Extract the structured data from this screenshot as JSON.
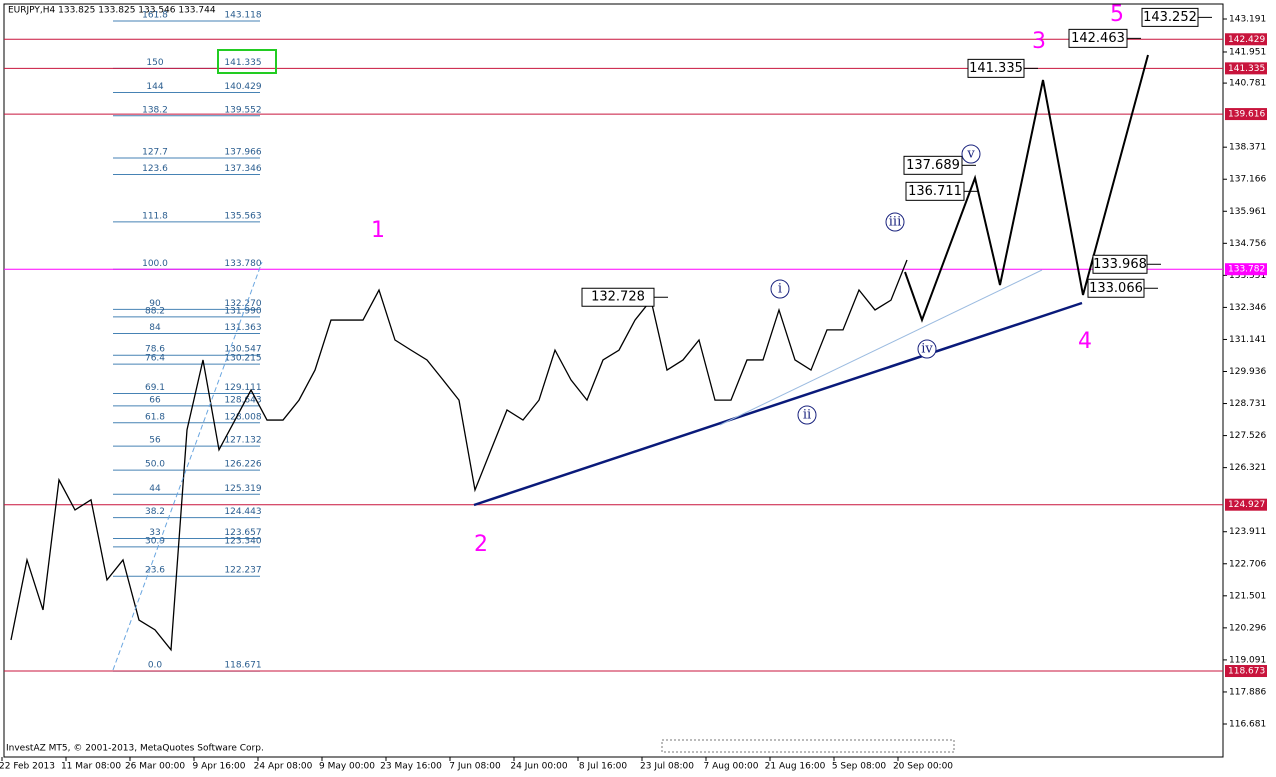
{
  "chart_data": {
    "type": "line",
    "title": "EURJPY,H4  133.825 133.825 133.546 133.744",
    "footer": "InvestAZ MT5, © 2001-2013, MetaQuotes Software Corp.",
    "categories": [
      null,
      "22 Feb 2013",
      null,
      null,
      null,
      "11 Mar 08:00",
      null,
      null,
      null,
      "26 Mar 00:00",
      null,
      null,
      null,
      "9 Apr 16:00",
      null,
      null,
      null,
      "24 Apr 08:00",
      null,
      null,
      null,
      "9 May 00:00",
      null,
      null,
      null,
      "23 May 16:00",
      null,
      null,
      null,
      "7 Jun 08:00",
      null,
      null,
      null,
      "24 Jun 00:00",
      null,
      null,
      null,
      "8 Jul 16:00",
      null,
      null,
      null,
      "23 Jul 08:00",
      null,
      null,
      null,
      "7 Aug 00:00",
      null,
      null,
      null,
      "21 Aug 16:00",
      null,
      null,
      null,
      "5 Sep 08:00",
      null,
      null,
      null,
      "20 Sep 00:00"
    ],
    "series": [
      {
        "color": "#000000",
        "values": [
          119.84,
          122.85,
          120.97,
          125.86,
          124.73,
          125.11,
          122.1,
          122.85,
          120.59,
          120.22,
          119.47,
          127.74,
          130.37,
          126.99,
          128.11,
          129.24,
          128.11,
          128.11,
          128.86,
          129.99,
          131.87,
          131.87,
          131.87,
          133.0,
          131.12,
          130.74,
          130.37,
          129.62,
          128.86,
          125.48,
          126.99,
          128.49,
          128.11,
          128.86,
          130.74,
          129.62,
          128.86,
          130.37,
          130.74,
          131.87,
          132.62,
          129.99,
          130.37,
          131.12,
          128.86,
          128.86,
          130.37,
          130.37,
          132.25,
          130.37,
          129.99,
          131.5,
          131.5,
          133.0,
          132.25,
          132.62,
          134.13,
          null
        ]
      }
    ],
    "ylim": [
      115.44,
      143.755
    ],
    "yticks": [
      143.191,
      141.951,
      140.781,
      138.371,
      137.166,
      135.961,
      134.756,
      133.551,
      132.346,
      131.141,
      129.936,
      128.731,
      127.526,
      126.321,
      123.911,
      122.706,
      121.501,
      120.296,
      119.091,
      117.886,
      116.681
    ],
    "levels": [
      {
        "value": 142.429,
        "color": "#c8143c"
      },
      {
        "value": 141.335,
        "color": "#c8143c"
      },
      {
        "value": 139.616,
        "color": "#c8143c"
      },
      {
        "value": 133.782,
        "color": "#ff00ff"
      },
      {
        "value": 124.927,
        "color": "#c8143c"
      },
      {
        "value": 118.673,
        "color": "#c8143c"
      }
    ],
    "fib_color": "#4682b4",
    "fib_levels": [
      {
        "ratio": 161.8,
        "price": 143.118
      },
      {
        "ratio": 150,
        "price": 141.335
      },
      {
        "ratio": 144,
        "price": 140.429
      },
      {
        "ratio": 138.2,
        "price": 139.552
      },
      {
        "ratio": 127.7,
        "price": 137.966
      },
      {
        "ratio": 123.6,
        "price": 137.346
      },
      {
        "ratio": 111.8,
        "price": 135.563
      },
      {
        "ratio": {
          "value": 100,
          "label": "100.0"
        },
        "price": {
          "value": 133.78,
          "label": "133.780"
        }
      },
      {
        "ratio": 90,
        "price": {
          "value": 132.27,
          "label": "132.270"
        }
      },
      {
        "ratio": 88.2,
        "price": {
          "value": 131.99,
          "label": "131.990"
        }
      },
      {
        "ratio": 84,
        "price": 131.363
      },
      {
        "ratio": 78.6,
        "price": 130.547
      },
      {
        "ratio": 76.4,
        "price": 130.215
      },
      {
        "ratio": 69.1,
        "price": 129.111
      },
      {
        "ratio": 66,
        "price": 128.643
      },
      {
        "ratio": 61.8,
        "price": 128.008
      },
      {
        "ratio": 56,
        "price": 127.132
      },
      {
        "ratio": {
          "value": 50,
          "label": "50.0"
        },
        "price": 126.226
      },
      {
        "ratio": 44,
        "price": 125.319
      },
      {
        "ratio": 38.2,
        "price": 124.443
      },
      {
        "ratio": 33,
        "price": 123.657
      },
      {
        "ratio": 30.9,
        "price": {
          "value": 123.34,
          "label": "123.340"
        }
      },
      {
        "ratio": 23.6,
        "price": 122.237
      },
      {
        "ratio": {
          "value": 0,
          "label": "0.0"
        },
        "price": 118.671
      }
    ],
    "wave_labels": [
      "1",
      "2",
      "3",
      "4",
      "5"
    ],
    "subwave_labels": [
      "i",
      "ii",
      "iii",
      "iv",
      "v"
    ],
    "price_callouts": [
      132.728,
      137.689,
      136.711,
      141.335,
      142.463,
      143.252,
      133.968,
      133.066
    ]
  }
}
